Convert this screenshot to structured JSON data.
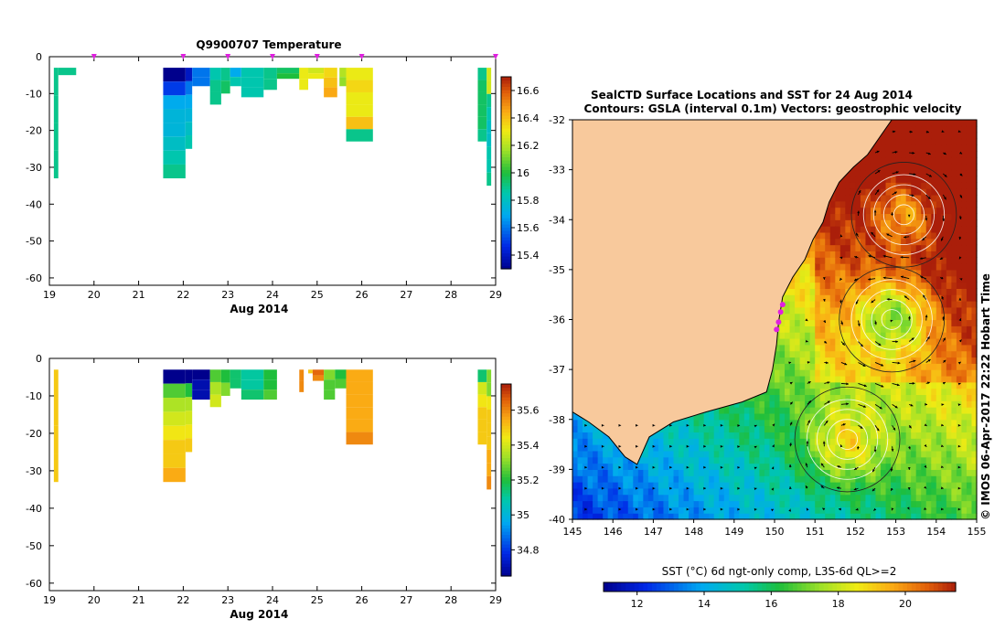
{
  "chart_data": [
    {
      "type": "heatmap",
      "id": "temp",
      "title": "Q9900707  Temperature",
      "xlabel": "Aug 2014",
      "xlim": [
        19,
        29
      ],
      "ylim": [
        -62,
        0
      ],
      "xticks": [
        "19",
        "20",
        "21",
        "22",
        "23",
        "24",
        "25",
        "26",
        "27",
        "28",
        "29"
      ],
      "yticks": [
        "0",
        "-10",
        "-20",
        "-30",
        "-40",
        "-50",
        "-60"
      ],
      "colorbar": {
        "min": 15.3,
        "max": 16.7,
        "ticks": [
          "15.4",
          "15.6",
          "15.8",
          "16",
          "16.2",
          "16.4",
          "16.6"
        ]
      },
      "markers_x": [
        20,
        22,
        23,
        24,
        25,
        26,
        29
      ],
      "profiles": [
        {
          "t0": 19.1,
          "t1": 19.2,
          "dmax": 33,
          "v": [
            15.9,
            15.9,
            15.9,
            15.9
          ]
        },
        {
          "t0": 19.2,
          "t1": 19.6,
          "dmax": 5,
          "v": [
            15.9
          ]
        },
        {
          "t0": 21.55,
          "t1": 22.05,
          "dmax": 33,
          "v": [
            15.3,
            15.5,
            15.7,
            15.75,
            15.75,
            15.8,
            15.85,
            15.9
          ]
        },
        {
          "t0": 22.05,
          "t1": 22.2,
          "dmax": 25,
          "v": [
            15.4,
            15.6,
            15.7,
            15.75,
            15.8,
            15.85
          ]
        },
        {
          "t0": 22.2,
          "t1": 22.6,
          "dmax": 8,
          "v": [
            15.6,
            15.6
          ]
        },
        {
          "t0": 22.6,
          "t1": 22.85,
          "dmax": 13,
          "v": [
            15.85,
            15.9,
            15.9
          ]
        },
        {
          "t0": 22.85,
          "t1": 23.05,
          "dmax": 10,
          "v": [
            15.9,
            15.95
          ]
        },
        {
          "t0": 23.05,
          "t1": 23.3,
          "dmax": 8,
          "v": [
            15.7,
            15.85
          ]
        },
        {
          "t0": 23.3,
          "t1": 23.8,
          "dmax": 11,
          "v": [
            15.85,
            15.85,
            15.85
          ]
        },
        {
          "t0": 23.8,
          "t1": 24.1,
          "dmax": 9,
          "v": [
            15.9,
            15.9
          ]
        },
        {
          "t0": 24.1,
          "t1": 24.6,
          "dmax": 6,
          "v": [
            15.95,
            16.0
          ]
        },
        {
          "t0": 24.6,
          "t1": 24.8,
          "dmax": 9,
          "v": [
            16.3,
            16.3
          ]
        },
        {
          "t0": 24.8,
          "t1": 25.15,
          "dmax": 6,
          "v": [
            16.25,
            16.3
          ]
        },
        {
          "t0": 25.15,
          "t1": 25.45,
          "dmax": 11,
          "v": [
            16.35,
            16.4,
            16.45
          ]
        },
        {
          "t0": 25.5,
          "t1": 25.65,
          "dmax": 8,
          "v": [
            16.2,
            16.15
          ]
        },
        {
          "t0": 25.65,
          "t1": 26.25,
          "dmax": 23,
          "v": [
            16.3,
            16.35,
            16.3,
            16.3,
            16.4,
            15.9
          ]
        },
        {
          "t0": 28.6,
          "t1": 28.8,
          "dmax": 23,
          "v": [
            15.9,
            15.95,
            15.95,
            15.95,
            15.95,
            15.9
          ]
        },
        {
          "t0": 28.8,
          "t1": 28.9,
          "dmax": 35,
          "v": [
            16.25,
            16.25,
            15.9,
            15.85,
            15.8,
            15.8,
            15.85,
            15.85,
            15.9
          ]
        }
      ]
    },
    {
      "type": "heatmap",
      "id": "sal",
      "title": "",
      "xlabel": "Aug 2014",
      "xlim": [
        19,
        29
      ],
      "ylim": [
        -62,
        0
      ],
      "xticks": [
        "19",
        "20",
        "21",
        "22",
        "23",
        "24",
        "25",
        "26",
        "27",
        "28",
        "29"
      ],
      "yticks": [
        "0",
        "-10",
        "-20",
        "-30",
        "-40",
        "-50",
        "-60"
      ],
      "colorbar": {
        "min": 34.65,
        "max": 35.75,
        "ticks": [
          "34.8",
          "35",
          "35.2",
          "35.4",
          "35.6"
        ]
      },
      "profiles": [
        {
          "t0": 19.1,
          "t1": 19.2,
          "dmax": 33,
          "v": [
            35.5,
            35.5,
            35.5,
            35.5
          ]
        },
        {
          "t0": 21.55,
          "t1": 22.05,
          "dmax": 33,
          "v": [
            34.65,
            35.25,
            35.35,
            35.4,
            35.45,
            35.5,
            35.5,
            35.55
          ]
        },
        {
          "t0": 22.05,
          "t1": 22.2,
          "dmax": 25,
          "v": [
            34.65,
            35.2,
            35.35,
            35.4,
            35.45,
            35.5
          ]
        },
        {
          "t0": 22.2,
          "t1": 22.6,
          "dmax": 11,
          "v": [
            34.65,
            34.7,
            34.7
          ]
        },
        {
          "t0": 22.6,
          "t1": 22.85,
          "dmax": 13,
          "v": [
            35.25,
            35.35,
            35.4
          ]
        },
        {
          "t0": 22.85,
          "t1": 23.05,
          "dmax": 10,
          "v": [
            35.2,
            35.3
          ]
        },
        {
          "t0": 23.05,
          "t1": 23.3,
          "dmax": 8,
          "v": [
            35.15,
            35.15
          ]
        },
        {
          "t0": 23.3,
          "t1": 23.8,
          "dmax": 11,
          "v": [
            35.1,
            35.1,
            35.15
          ]
        },
        {
          "t0": 23.8,
          "t1": 24.1,
          "dmax": 11,
          "v": [
            35.2,
            35.2,
            35.25
          ]
        },
        {
          "t0": 24.6,
          "t1": 24.7,
          "dmax": 9,
          "v": [
            35.6,
            35.6
          ]
        },
        {
          "t0": 24.8,
          "t1": 24.9,
          "dmax": 4,
          "v": [
            35.5
          ]
        },
        {
          "t0": 24.9,
          "t1": 25.15,
          "dmax": 6,
          "v": [
            35.65,
            35.6
          ]
        },
        {
          "t0": 25.15,
          "t1": 25.4,
          "dmax": 11,
          "v": [
            35.3,
            35.25,
            35.25
          ]
        },
        {
          "t0": 25.4,
          "t1": 25.65,
          "dmax": 8,
          "v": [
            35.2,
            35.25
          ]
        },
        {
          "t0": 25.65,
          "t1": 26.25,
          "dmax": 23,
          "v": [
            35.55,
            35.55,
            35.55,
            35.55,
            35.55,
            35.6
          ]
        },
        {
          "t0": 28.6,
          "t1": 28.8,
          "dmax": 23,
          "v": [
            35.15,
            35.4,
            35.45,
            35.5,
            35.5,
            35.5
          ]
        },
        {
          "t0": 28.8,
          "t1": 28.9,
          "dmax": 35,
          "v": [
            35.3,
            35.3,
            35.45,
            35.5,
            35.5,
            35.5,
            35.55,
            35.55,
            35.6
          ]
        }
      ]
    },
    {
      "type": "heatmap",
      "id": "map",
      "title": "SealCTD Surface Locations and SST for 24 Aug 2014",
      "subtitle": "Contours: GSLA (interval 0.1m) Vectors: geostrophic velocity",
      "side_label": "© IMOS 06-Apr-2017 22:22 Hobart Time",
      "xlim": [
        145,
        155
      ],
      "ylim": [
        -40,
        -32
      ],
      "xticks": [
        "145",
        "146",
        "147",
        "148",
        "149",
        "150",
        "151",
        "152",
        "153",
        "154",
        "155"
      ],
      "yticks": [
        "-32",
        "-33",
        "-34",
        "-35",
        "-36",
        "-37",
        "-38",
        "-39",
        "-40"
      ],
      "colorbar": {
        "label": "SST (°C) 6d ngt-only comp, L3S-6d QL>=2",
        "min": 11,
        "max": 21.5,
        "ticks": [
          "12",
          "14",
          "16",
          "18",
          "20"
        ]
      },
      "coastline": [
        [
          145.0,
          -37.85
        ],
        [
          145.4,
          -38.05
        ],
        [
          145.9,
          -38.35
        ],
        [
          146.3,
          -38.75
        ],
        [
          146.6,
          -38.9
        ],
        [
          146.9,
          -38.35
        ],
        [
          147.5,
          -38.05
        ],
        [
          148.3,
          -37.85
        ],
        [
          149.2,
          -37.65
        ],
        [
          149.8,
          -37.45
        ],
        [
          149.95,
          -37.0
        ],
        [
          150.05,
          -36.5
        ],
        [
          150.1,
          -36.05
        ],
        [
          150.2,
          -35.55
        ],
        [
          150.45,
          -35.15
        ],
        [
          150.75,
          -34.8
        ],
        [
          150.95,
          -34.4
        ],
        [
          151.2,
          -34.05
        ],
        [
          151.35,
          -33.65
        ],
        [
          151.6,
          -33.25
        ],
        [
          151.95,
          -32.95
        ],
        [
          152.3,
          -32.7
        ],
        [
          152.6,
          -32.35
        ],
        [
          152.9,
          -32.0
        ],
        [
          145.0,
          -32.0
        ]
      ],
      "eddies": [
        {
          "lon": 153.2,
          "lat": -33.9,
          "sst": 19.8,
          "sense": -1
        },
        {
          "lon": 152.9,
          "lat": -36.0,
          "sst": 17.2,
          "sense": 1
        },
        {
          "lon": 151.8,
          "lat": -38.4,
          "sst": 18.8,
          "sense": -1
        }
      ],
      "seal_positions": [
        {
          "lon": 150.15,
          "lat": -35.85
        },
        {
          "lon": 150.1,
          "lat": -36.05
        },
        {
          "lon": 150.05,
          "lat": -36.2
        },
        {
          "lon": 150.2,
          "lat": -35.7
        }
      ]
    }
  ]
}
